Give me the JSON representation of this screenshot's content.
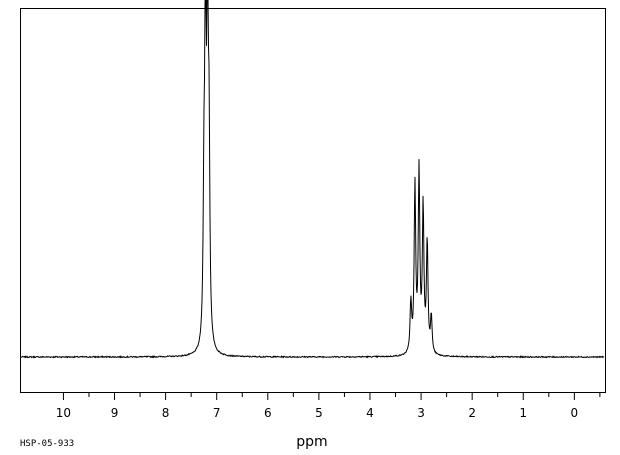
{
  "chart_data": {
    "type": "line",
    "xlabel": "ppm",
    "x_reversed": true,
    "xlim": [
      10.85,
      -0.6
    ],
    "ylim": [
      0,
      100
    ],
    "xticks": [
      10,
      9,
      8,
      7,
      6,
      5,
      4,
      3,
      2,
      1,
      0
    ],
    "grid": false,
    "series": [
      {
        "baseline": 0,
        "peaks": [
          {
            "ppm": 7.22,
            "height": 91
          },
          {
            "ppm": 7.18,
            "height": 89
          },
          {
            "ppm": 7.15,
            "height": 55
          },
          {
            "ppm": 7.25,
            "height": 40
          },
          {
            "ppm": 3.12,
            "height": 49
          },
          {
            "ppm": 3.04,
            "height": 53
          },
          {
            "ppm": 2.96,
            "height": 43
          },
          {
            "ppm": 2.88,
            "height": 33
          },
          {
            "ppm": 3.2,
            "height": 15
          },
          {
            "ppm": 2.8,
            "height": 11
          }
        ]
      }
    ]
  },
  "footer": {
    "spectrum_code": "HSP-05-933"
  }
}
